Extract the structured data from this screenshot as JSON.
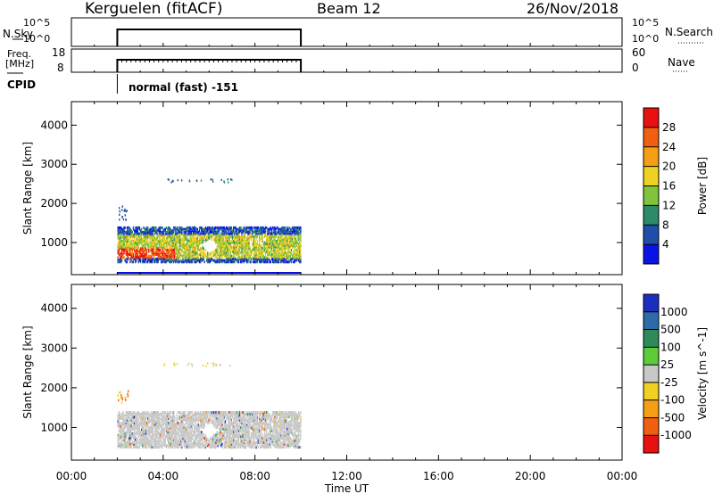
{
  "header": {
    "station": "Kerguelen (fitACF)",
    "beam": "Beam 12",
    "date": "26/Nov/2018"
  },
  "panels": {
    "nsky": {
      "label": "N.Sky",
      "left_ticks": [
        "10^5",
        "10^0"
      ],
      "right_ticks": [
        "10^5",
        "10^0"
      ],
      "right_label": "N.Search"
    },
    "freq": {
      "label_line1": "Freq.",
      "label_line2": "[MHz]",
      "left_ticks": [
        "18",
        "8"
      ],
      "right_ticks": [
        "60",
        "0"
      ],
      "right_label": "Nave"
    },
    "cpid": {
      "label": "CPID",
      "value": "normal (fast) -151"
    }
  },
  "chart_data": [
    {
      "type": "heatmap",
      "title": "",
      "xlabel": "Time UT",
      "ylabel": "Slant Range [km]",
      "xlim": [
        "00:00",
        "24:00"
      ],
      "ylim": [
        180,
        4600
      ],
      "x_tick_labels": [
        "00:00",
        "04:00",
        "08:00",
        "12:00",
        "16:00",
        "20:00",
        "00:00"
      ],
      "y_tick_labels": [
        "1000",
        "2000",
        "3000",
        "4000"
      ],
      "colorbar": {
        "label": "Power [dB]",
        "tick_labels": [
          "4",
          "8",
          "12",
          "16",
          "20",
          "24",
          "28"
        ],
        "colors": [
          "#0b12e6",
          "#1f4fa8",
          "#2f8a6a",
          "#7fc43a",
          "#f0d020",
          "#f5a014",
          "#f06010",
          "#e81010"
        ]
      },
      "echo_regions": [
        {
          "from_ut": "02:00",
          "to_ut": "10:00",
          "range_from_km": 500,
          "range_to_km": 1400,
          "description": "main scatter band"
        },
        {
          "from_ut": "03:00",
          "to_ut": "04:30",
          "range_from_km": 400,
          "range_to_km": 800,
          "description": "strongest power, ~28 dB"
        },
        {
          "from_ut": "02:00",
          "to_ut": "02:30",
          "range_from_km": 1600,
          "range_to_km": 1950,
          "description": "weak near-range echoes"
        },
        {
          "from_ut": "04:00",
          "to_ut": "07:00",
          "range_from_km": 2550,
          "range_to_km": 2650,
          "description": "sparse far-range echoes"
        }
      ]
    },
    {
      "type": "heatmap",
      "title": "",
      "xlabel": "Time UT",
      "ylabel": "Slant Range [km]",
      "xlim": [
        "00:00",
        "24:00"
      ],
      "ylim": [
        180,
        4600
      ],
      "x_tick_labels": [
        "00:00",
        "04:00",
        "08:00",
        "12:00",
        "16:00",
        "20:00",
        "00:00"
      ],
      "y_tick_labels": [
        "1000",
        "2000",
        "3000",
        "4000"
      ],
      "colorbar": {
        "label": "Velocity [m s^-1]",
        "tick_labels": [
          "1000",
          "500",
          "100",
          "25",
          "-25",
          "-100",
          "-500",
          "-1000"
        ],
        "colors": [
          "#1a2fc0",
          "#2f6aa8",
          "#2f8a5a",
          "#5ccc3a",
          "#c8c8c8",
          "#f0d020",
          "#f5a014",
          "#f06010",
          "#e81010"
        ]
      },
      "echo_regions": [
        {
          "from_ut": "02:00",
          "to_ut": "10:00",
          "range_from_km": 500,
          "range_to_km": 1400,
          "description": "ground scatter, mostly grey (-25 to 25)"
        },
        {
          "from_ut": "02:00",
          "to_ut": "02:30",
          "range_from_km": 1600,
          "range_to_km": 1950,
          "description": "negative velocities"
        }
      ]
    }
  ]
}
